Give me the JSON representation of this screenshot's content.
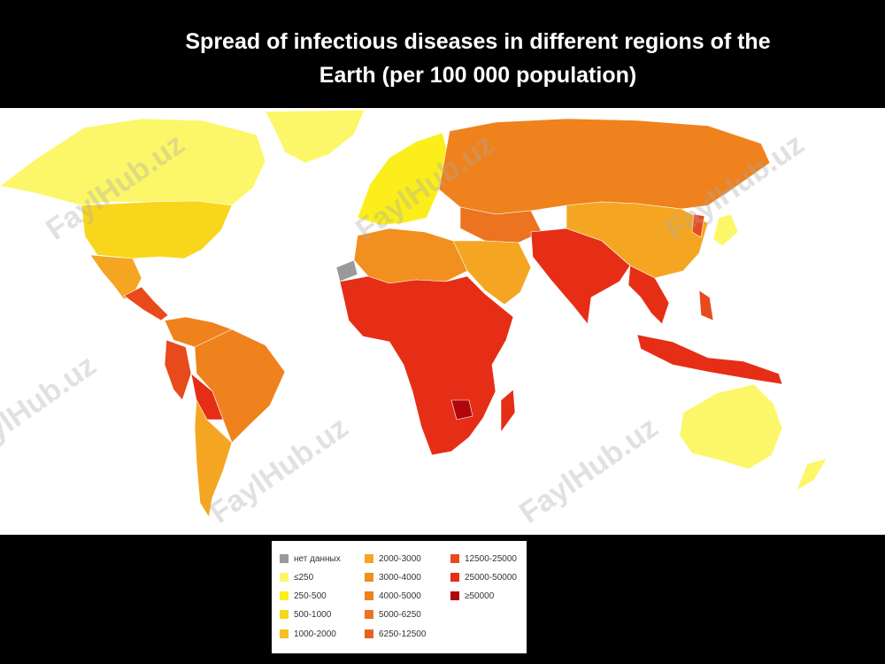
{
  "title": {
    "line1": "Spread of infectious diseases in different regions of the",
    "line2": "Earth (per 100 000 population)"
  },
  "watermark": "FaylHub.uz",
  "colors": {
    "nodata": "#9a9a9a",
    "le250": "#fcf768",
    "c250_500": "#fbee1b",
    "c500_1000": "#f8d61c",
    "c1000_2000": "#f5c021",
    "c2000_3000": "#f4a623",
    "c3000_4000": "#f18f1f",
    "c4000_5000": "#ef821c",
    "c5000_6250": "#ec7320",
    "c6250_12500": "#e96121",
    "c12500_25000": "#e84a1c",
    "c25000_50000": "#e62e16",
    "ge50000": "#b0060d"
  },
  "legend": {
    "items": [
      {
        "label": "нет данных",
        "color": "#9a9a9a"
      },
      {
        "label": "≤250",
        "color": "#fcf768"
      },
      {
        "label": "250-500",
        "color": "#fbee1b"
      },
      {
        "label": "500-1000",
        "color": "#f8d61c"
      },
      {
        "label": "1000-2000",
        "color": "#f5c021"
      },
      {
        "label": "2000-3000",
        "color": "#f4a623"
      },
      {
        "label": "3000-4000",
        "color": "#f18f1f"
      },
      {
        "label": "4000-5000",
        "color": "#ef821c"
      },
      {
        "label": "5000-6250",
        "color": "#ec7320"
      },
      {
        "label": "6250-12500",
        "color": "#e96121"
      },
      {
        "label": "12500-25000",
        "color": "#e84a1c"
      },
      {
        "label": "25000-50000",
        "color": "#e62e16"
      },
      {
        "label": "≥50000",
        "color": "#b0060d"
      }
    ]
  }
}
